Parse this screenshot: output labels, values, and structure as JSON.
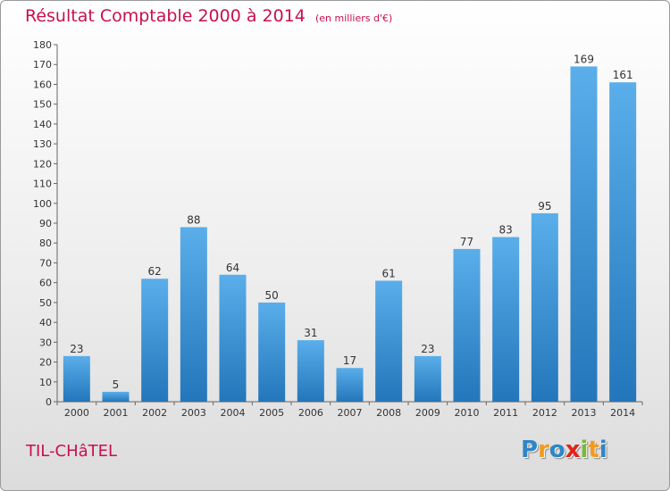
{
  "chart_data": {
    "type": "bar",
    "title": "Résultat Comptable 2000 à 2014",
    "subtitle": "(en milliers d'€)",
    "categories": [
      "2000",
      "2001",
      "2002",
      "2003",
      "2004",
      "2005",
      "2006",
      "2007",
      "2008",
      "2009",
      "2010",
      "2011",
      "2012",
      "2013",
      "2014"
    ],
    "values": [
      23,
      5,
      62,
      88,
      64,
      50,
      31,
      17,
      61,
      23,
      77,
      83,
      95,
      169,
      161
    ],
    "ylim": [
      0,
      180
    ],
    "yticks": [
      0,
      10,
      20,
      30,
      40,
      50,
      60,
      70,
      80,
      90,
      100,
      110,
      120,
      130,
      140,
      150,
      160,
      170,
      180
    ],
    "grid": false,
    "bar_color": "#3d8fd8"
  },
  "commune": "TIL-CHâTEL",
  "logo": {
    "letters": [
      "P",
      "r",
      "o",
      "x",
      "i",
      "t",
      "i"
    ],
    "colors": [
      "#2e86c8",
      "#f29a1f",
      "#2e86c8",
      "#e2231a",
      "#7bb83a",
      "#f29a1f",
      "#2e86c8"
    ]
  }
}
